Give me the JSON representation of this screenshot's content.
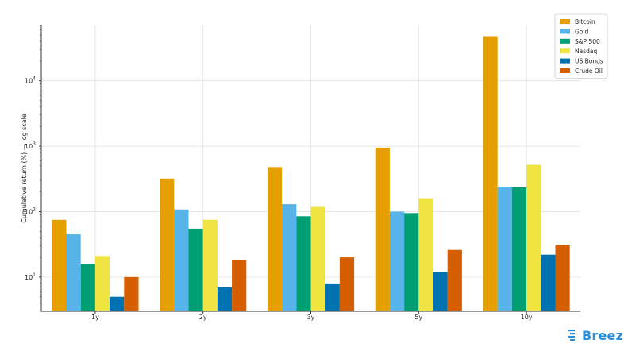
{
  "brand": {
    "name": "Breez",
    "color": "#2a8fd8"
  },
  "chart_data": {
    "type": "bar",
    "title": "",
    "xlabel": "",
    "ylabel": "Cumulative return (%) — log scale",
    "yscale": "log",
    "ylim": [
      3,
      70000
    ],
    "yticks": [
      10,
      100,
      1000,
      10000
    ],
    "ytick_labels": [
      {
        "base": "10",
        "exp": "1"
      },
      {
        "base": "10",
        "exp": "2"
      },
      {
        "base": "10",
        "exp": "3"
      },
      {
        "base": "10",
        "exp": "4"
      }
    ],
    "grid": true,
    "legend_position": "top-right",
    "categories": [
      "1y",
      "2y",
      "3y",
      "5y",
      "10y"
    ],
    "series": [
      {
        "name": "Bitcoin",
        "color": "#e69f00",
        "values": [
          75,
          320,
          480,
          950,
          48000
        ]
      },
      {
        "name": "Gold",
        "color": "#56b4e9",
        "values": [
          45,
          108,
          130,
          100,
          240
        ]
      },
      {
        "name": "S&P 500",
        "color": "#009e73",
        "values": [
          16,
          55,
          85,
          95,
          235
        ]
      },
      {
        "name": "Nasdaq",
        "color": "#f0e442",
        "values": [
          21,
          75,
          118,
          160,
          520
        ]
      },
      {
        "name": "US Bonds",
        "color": "#0072b2",
        "values": [
          5,
          7,
          8,
          12,
          22
        ]
      },
      {
        "name": "Crude Oil",
        "color": "#d55e00",
        "values": [
          10,
          18,
          20,
          26,
          31
        ]
      }
    ]
  }
}
